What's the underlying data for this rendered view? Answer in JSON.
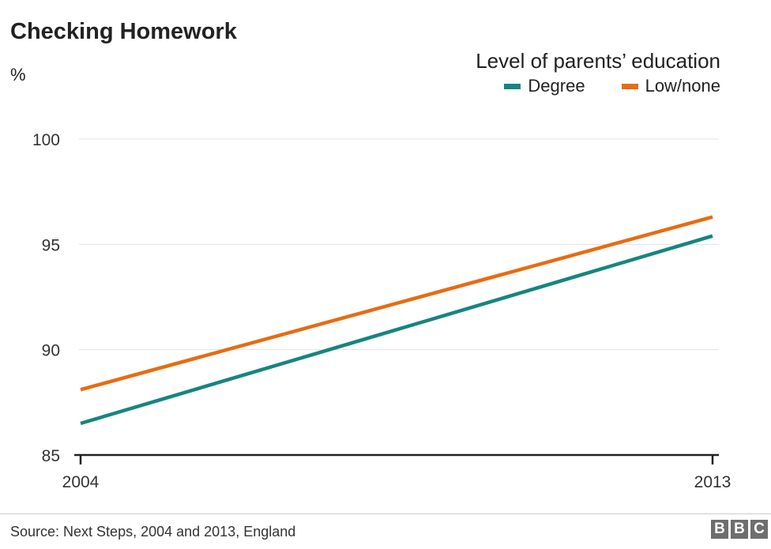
{
  "chart_data": {
    "type": "line",
    "title": "Checking Homework",
    "ylabel": "%",
    "legend_title": "Level of parents’ education",
    "legend_position": "top-right",
    "categories": [
      "2004",
      "2013"
    ],
    "x": [
      2004,
      2013
    ],
    "xticks": [
      "2004",
      "2013"
    ],
    "yticks": [
      "100",
      "95",
      "90",
      "85"
    ],
    "ylim": [
      85,
      100
    ],
    "grid": true,
    "series": [
      {
        "name": "Degree",
        "values": [
          86.5,
          95.4
        ],
        "color": "#168580"
      },
      {
        "name": "Low/none",
        "values": [
          88.1,
          96.3
        ],
        "color": "#e66c12"
      }
    ]
  },
  "footer": {
    "source": "Source: Next Steps, 2004 and 2013, England",
    "logo_letters": [
      "B",
      "B",
      "C"
    ]
  }
}
